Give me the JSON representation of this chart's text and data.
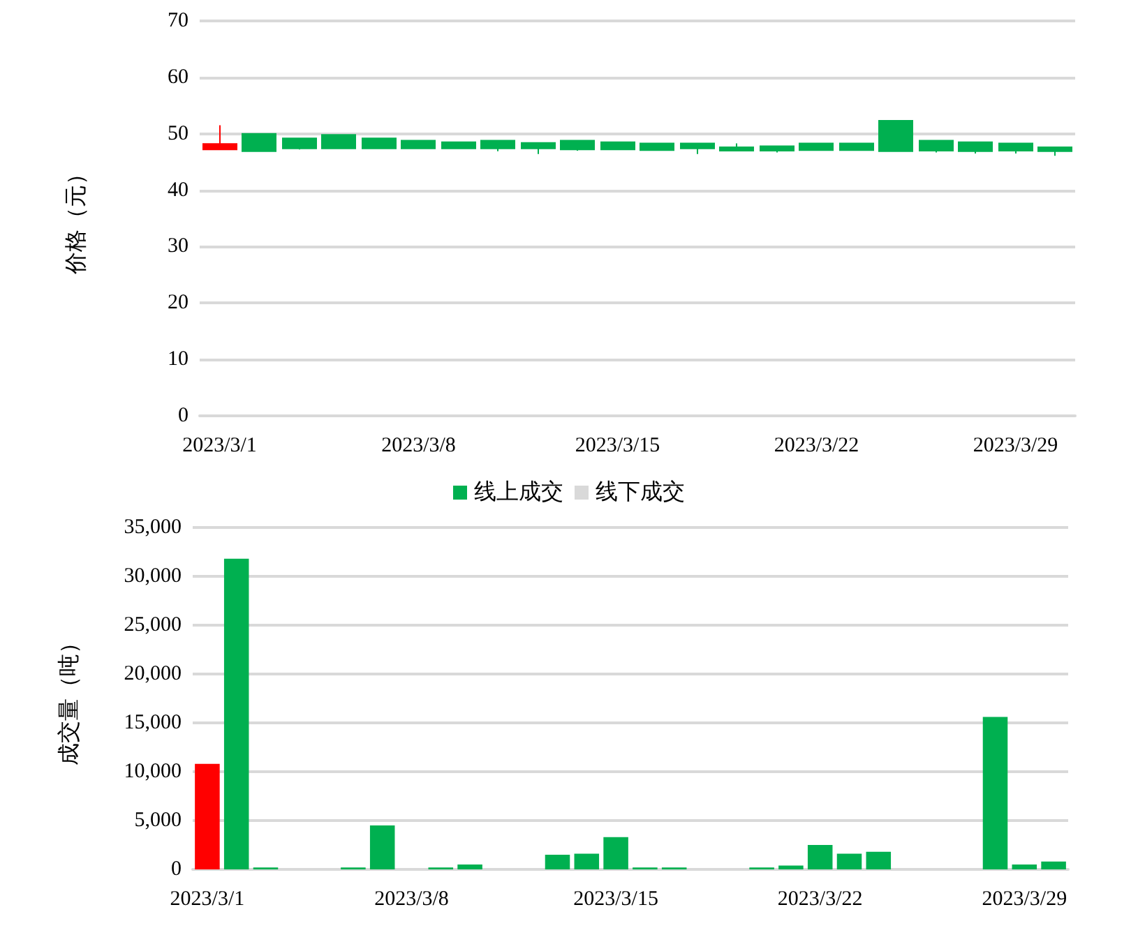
{
  "chart_data": [
    {
      "type": "candlestick",
      "ylabel": "价格（元）",
      "categories": [
        "2023/3/1",
        null,
        null,
        null,
        null,
        "2023/3/8",
        null,
        null,
        null,
        null,
        "2023/3/15",
        null,
        null,
        null,
        null,
        "2023/3/22",
        null,
        null,
        null,
        null,
        "2023/3/29",
        null
      ],
      "ohlc": [
        [
          47.2,
          51.5,
          47.2,
          48.2
        ],
        [
          50.0,
          50.0,
          46.9,
          46.9
        ],
        [
          49.2,
          49.2,
          47.2,
          47.4
        ],
        [
          49.8,
          49.8,
          47.4,
          47.4
        ],
        [
          49.2,
          49.2,
          47.4,
          47.4
        ],
        [
          48.8,
          48.8,
          47.4,
          47.4
        ],
        [
          48.5,
          48.5,
          47.4,
          47.4
        ],
        [
          48.8,
          48.8,
          46.9,
          47.4
        ],
        [
          48.4,
          48.4,
          46.4,
          47.4
        ],
        [
          48.8,
          48.8,
          47.0,
          47.2
        ],
        [
          48.5,
          48.5,
          47.2,
          47.2
        ],
        [
          48.3,
          48.3,
          47.1,
          47.1
        ],
        [
          48.3,
          48.3,
          46.4,
          47.4
        ],
        [
          47.6,
          48.3,
          47.0,
          47.0
        ],
        [
          47.8,
          47.8,
          46.7,
          47.0
        ],
        [
          48.3,
          48.3,
          47.1,
          47.1
        ],
        [
          48.3,
          48.3,
          47.1,
          47.1
        ],
        [
          52.3,
          52.3,
          46.9,
          46.9
        ],
        [
          48.8,
          48.8,
          46.7,
          47.0
        ],
        [
          48.5,
          48.5,
          46.5,
          46.9
        ],
        [
          48.3,
          48.3,
          46.5,
          47.0
        ],
        [
          47.6,
          47.6,
          46.1,
          46.9
        ]
      ],
      "colors": [
        "#ff0000",
        "#00b050",
        "#00b050",
        "#00b050",
        "#00b050",
        "#00b050",
        "#00b050",
        "#00b050",
        "#00b050",
        "#00b050",
        "#00b050",
        "#00b050",
        "#00b050",
        "#00b050",
        "#00b050",
        "#00b050",
        "#00b050",
        "#00b050",
        "#00b050",
        "#00b050",
        "#00b050",
        "#00b050"
      ],
      "ylim": [
        0,
        70
      ],
      "yticks": [
        0,
        10,
        20,
        30,
        40,
        50,
        60,
        70
      ],
      "grid": "y"
    },
    {
      "type": "bar",
      "ylabel": "成交量（吨）",
      "stacked": true,
      "legend": "top",
      "categories": [
        "2023/3/1",
        null,
        null,
        null,
        null,
        null,
        null,
        "2023/3/8",
        null,
        null,
        null,
        null,
        null,
        null,
        "2023/3/15",
        null,
        null,
        null,
        null,
        null,
        null,
        "2023/3/22",
        null,
        null,
        null,
        null,
        null,
        null,
        "2023/3/29",
        null
      ],
      "series": [
        {
          "name": "线上成交",
          "color": "#00b050",
          "colors": [
            "#ff0000",
            "#00b050",
            "#00b050",
            "#00b050",
            "#00b050",
            "#00b050",
            "#00b050",
            "#00b050",
            "#00b050",
            "#00b050",
            "#00b050",
            "#00b050",
            "#00b050",
            "#00b050",
            "#00b050",
            "#00b050",
            "#00b050",
            "#00b050",
            "#00b050",
            "#00b050",
            "#00b050",
            "#00b050",
            "#00b050",
            "#00b050",
            "#00b050",
            "#00b050",
            "#00b050",
            "#00b050",
            "#00b050",
            "#00b050"
          ],
          "values": [
            10800,
            31800,
            200,
            null,
            null,
            200,
            4500,
            null,
            200,
            500,
            null,
            null,
            1500,
            1600,
            3300,
            200,
            200,
            null,
            null,
            200,
            400,
            2500,
            1600,
            1800,
            null,
            null,
            null,
            15600,
            500,
            800
          ]
        },
        {
          "name": "线下成交",
          "color": "#d9d9d9",
          "values": [
            0,
            0,
            0,
            0,
            0,
            0,
            0,
            0,
            0,
            0,
            0,
            0,
            0,
            0,
            0,
            0,
            0,
            0,
            0,
            0,
            0,
            0,
            0,
            0,
            0,
            0,
            0,
            0,
            0,
            0
          ]
        }
      ],
      "ylim": [
        0,
        35000
      ],
      "yticks": [
        0,
        {
          "value": 5000,
          "label": "5,000"
        },
        {
          "value": 10000,
          "label": "10,000"
        },
        {
          "value": 15000,
          "label": "15,000"
        },
        {
          "value": 20000,
          "label": "20,000"
        },
        {
          "value": 25000,
          "label": "25,000"
        },
        {
          "value": 30000,
          "label": "30,000"
        },
        {
          "value": 35000,
          "label": "35,000"
        }
      ],
      "grid": "y"
    }
  ]
}
